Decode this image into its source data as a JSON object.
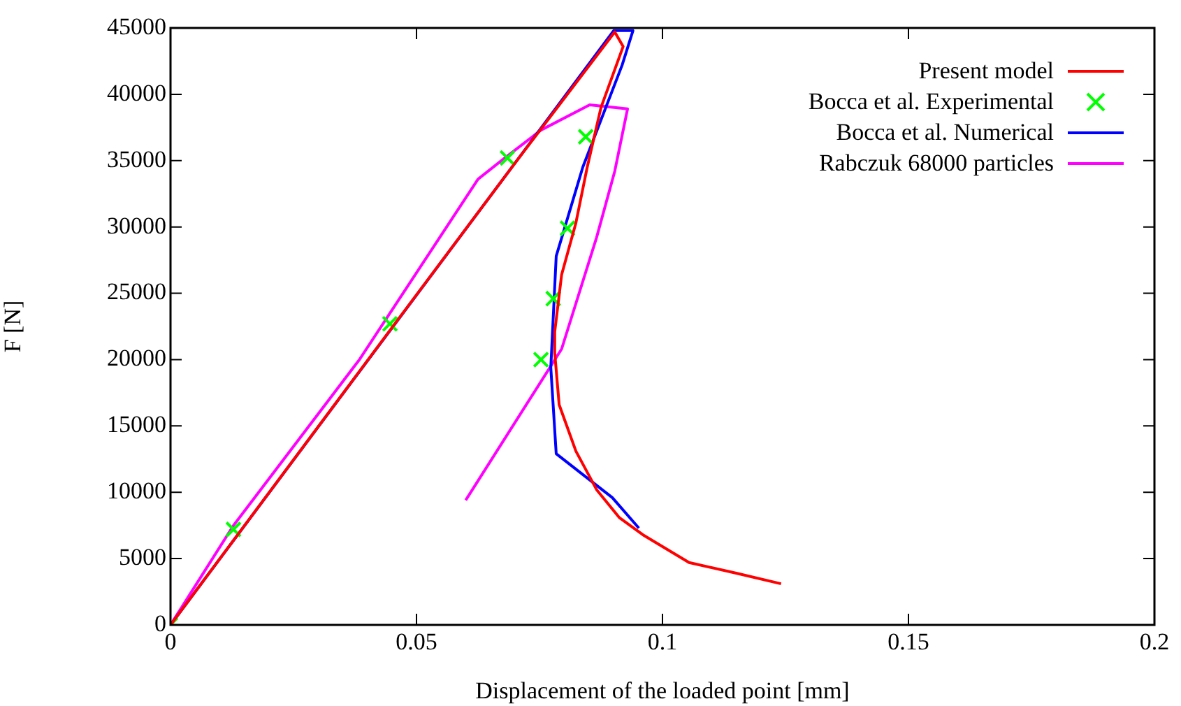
{
  "chart_data": {
    "type": "line",
    "xlabel": "Displacement of the loaded point [mm]",
    "ylabel": "F [N]",
    "xlim": [
      0,
      0.2
    ],
    "xticks": [
      0,
      0.05,
      0.1,
      0.15,
      0.2
    ],
    "ylim": [
      0,
      45000
    ],
    "yticks": [
      0,
      5000,
      10000,
      15000,
      20000,
      25000,
      30000,
      35000,
      40000,
      45000
    ],
    "grid": false,
    "legend": "top right",
    "series": [
      {
        "name": "Present model",
        "color": "#ff0000",
        "x": [
          0,
          0.045,
          0.07,
          0.0903,
          0.092,
          0.0875,
          0.0847,
          0.0824,
          0.0795,
          0.0781,
          0.0781,
          0.079,
          0.0824,
          0.0866,
          0.0912,
          0.096,
          0.1054,
          0.115,
          0.1241
        ],
        "values": [
          0,
          22400,
          34800,
          44700,
          43600,
          39000,
          34500,
          30300,
          26400,
          22100,
          20500,
          16600,
          13100,
          10200,
          8100,
          6800,
          4700,
          3900,
          3100
        ]
      },
      {
        "name": "Bocca et al. Experimental",
        "type": "scatter",
        "marker": "cross",
        "color": "#00ff00",
        "x": [
          0,
          0.0128,
          0.0446,
          0.0685,
          0.0844,
          0.0807,
          0.0778,
          0.0753
        ],
        "values": [
          0,
          7200,
          22700,
          35200,
          36800,
          29900,
          24600,
          20000
        ]
      },
      {
        "name": "Bocca et al. Numerical",
        "color": "#0000ff",
        "x": [
          0,
          0.0901,
          0.094,
          0.0918,
          0.0838,
          0.0784,
          0.0773,
          0.0784,
          0.0898,
          0.0952
        ],
        "values": [
          0,
          44800,
          44800,
          42200,
          34500,
          27800,
          19400,
          12900,
          9600,
          7300
        ]
      },
      {
        "name": "Rabczuk 68000 particles",
        "color": "#ff00ff",
        "x": [
          0,
          0.0128,
          0.0384,
          0.0625,
          0.0676,
          0.0753,
          0.0852,
          0.0929,
          0.0903,
          0.0866,
          0.0795,
          0.06
        ],
        "values": [
          0,
          7500,
          20000,
          33600,
          35100,
          37300,
          39200,
          38900,
          34200,
          29200,
          20800,
          9400
        ]
      }
    ]
  }
}
